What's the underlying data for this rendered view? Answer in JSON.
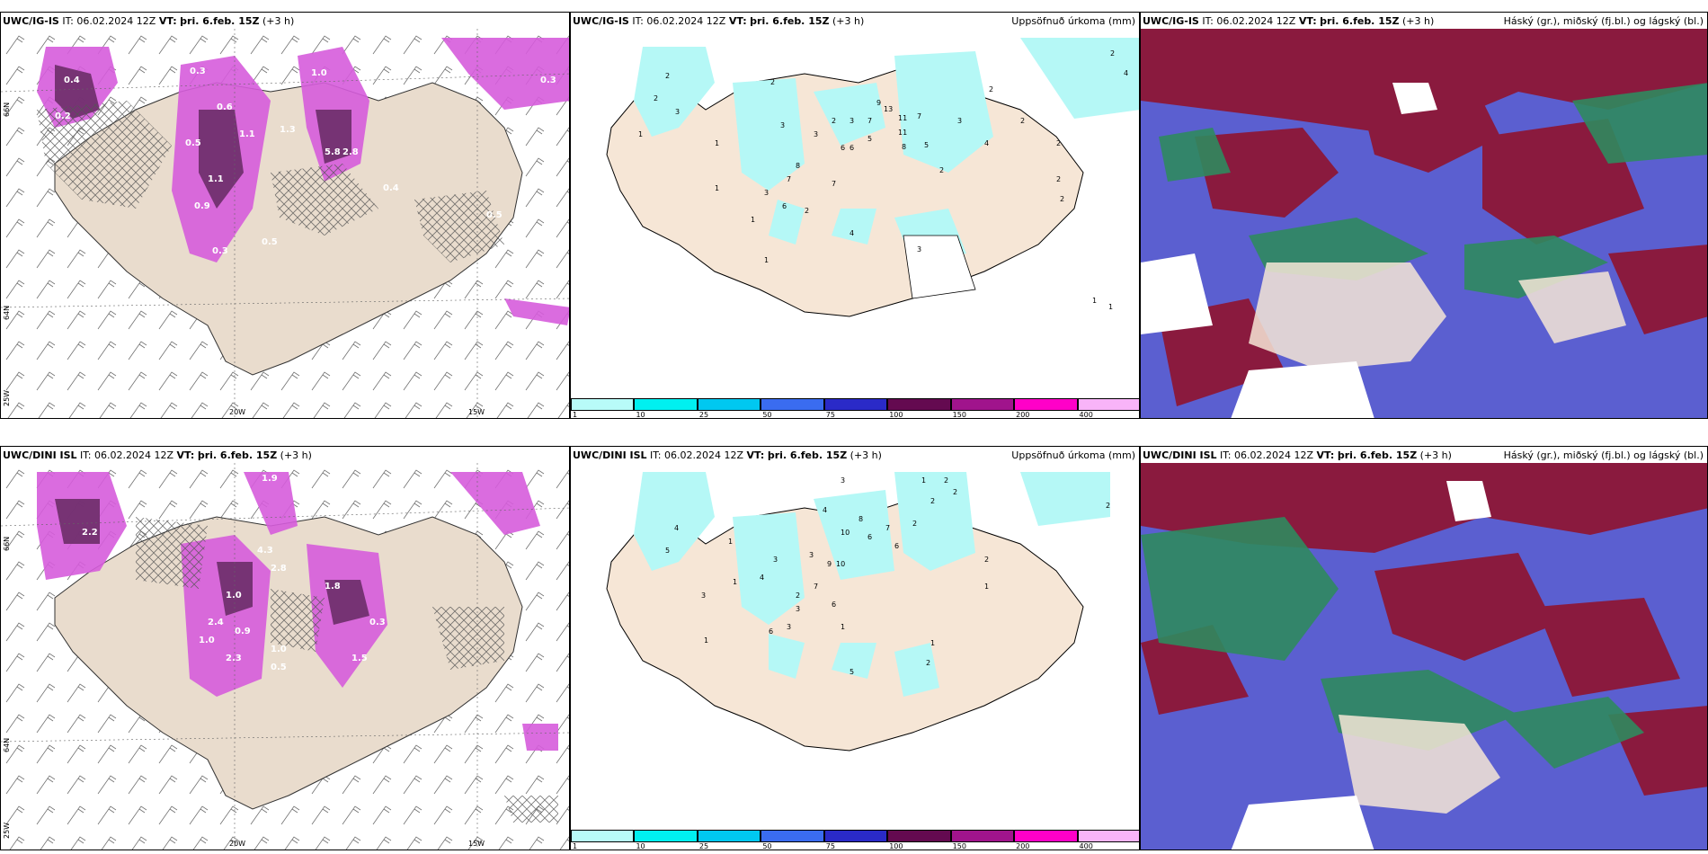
{
  "colors": {
    "land": "#f6e6d6",
    "land_wind": "#e9dccd",
    "precip_light": "#b5f8f6",
    "snow_magenta": "#d65cdb",
    "snow_dark": "#6b2d68",
    "cloud_high": "#8a1a3e",
    "cloud_mid": "#5b5fd0",
    "cloud_low": "#2f8a5e"
  },
  "icons": {
    "hatch": "crosshatch-pattern",
    "barbs": "wind-barb-icon"
  },
  "rows": [
    {
      "model": "UWC/IG-IS",
      "panels": [
        {
          "header_model": "UWC/IG-IS",
          "it": "IT: 06.02.2024 12Z",
          "vt_label": "VT:",
          "vt": "þri. 6.feb. 15Z",
          "lead": "(+3 h)",
          "right_title": ""
        },
        {
          "header_model": "UWC/IG-IS",
          "it": "IT: 06.02.2024 12Z",
          "vt_label": "VT:",
          "vt": "þri. 6.feb. 15Z",
          "lead": "(+3 h)",
          "right_title": "Uppsöfnuð úrkoma (mm)"
        },
        {
          "header_model": "UWC/IG-IS",
          "it": "IT: 06.02.2024 12Z",
          "vt_label": "VT:",
          "vt": "þri. 6.feb. 15Z",
          "lead": "(+3 h)",
          "right_title": "Háský (gr.), miðský (fj.bl.) og lágský (bl.)"
        }
      ]
    },
    {
      "model": "UWC/DINI ISL",
      "panels": [
        {
          "header_model": "UWC/DINI ISL",
          "it": "IT: 06.02.2024 12Z",
          "vt_label": "VT:",
          "vt": "þri. 6.feb. 15Z",
          "lead": "(+3 h)",
          "right_title": ""
        },
        {
          "header_model": "UWC/DINI ISL",
          "it": "IT: 06.02.2024 12Z",
          "vt_label": "VT:",
          "vt": "þri. 6.feb. 15Z",
          "lead": "(+3 h)",
          "right_title": "Uppsöfnuð úrkoma (mm)"
        },
        {
          "header_model": "UWC/DINI ISL",
          "it": "IT: 06.02.2024 12Z",
          "vt_label": "VT:",
          "vt": "þri. 6.feb. 15Z",
          "lead": "(+3 h)",
          "right_title": "Háský (gr.), miðský (fj.bl.) og lágský (bl.)"
        }
      ]
    }
  ],
  "axes": {
    "lon_20": "20W",
    "lon_15": "15W",
    "lat_66": "66N",
    "lat_64": "64N",
    "lon_25": "25W"
  },
  "legend": {
    "labels": [
      "1",
      "10",
      "25",
      "50",
      "75",
      "100",
      "150",
      "200",
      "400"
    ],
    "colors": [
      "#b8fbf8",
      "#00f0f0",
      "#00c8f0",
      "#3a6cf0",
      "#2a2ac8",
      "#640a50",
      "#a0148c",
      "#ff00c8",
      "#f8b4f8"
    ]
  },
  "precip_labels_top": [
    "2",
    "2",
    "3",
    "2",
    "3",
    "1",
    "1",
    "3",
    "2",
    "3",
    "7",
    "9",
    "13",
    "11",
    "7",
    "11",
    "8",
    "5",
    "6",
    "6",
    "5",
    "4",
    "3",
    "2",
    "2",
    "2",
    "2",
    "8",
    "7",
    "7",
    "3",
    "6",
    "2",
    "4",
    "1",
    "1",
    "1",
    "3",
    "2",
    "2",
    "4",
    "2",
    "1",
    "1"
  ],
  "precip_labels_bottom": [
    "3",
    "1",
    "4",
    "2",
    "2",
    "1",
    "4",
    "10",
    "8",
    "6",
    "7",
    "6",
    "9",
    "10",
    "3",
    "2",
    "2",
    "1",
    "4",
    "3",
    "5",
    "2",
    "6",
    "3",
    "3",
    "7",
    "6",
    "1",
    "3",
    "5",
    "2",
    "1",
    "1",
    "2",
    "2",
    "1"
  ],
  "snow_labels_top": [
    "0.4",
    "0.3",
    "0.2",
    "0.5",
    "0.6",
    "1.0",
    "1.1",
    "2.8",
    "5.8",
    "1.3",
    "0.4",
    "1.1",
    "0.3",
    "0.5",
    "0.5",
    "0.9",
    "0.3"
  ],
  "snow_labels_bottom": [
    "0.3",
    "1.9",
    "2.2",
    "4.3",
    "2.8",
    "1.0",
    "2.4",
    "2.3",
    "1.0",
    "0.5",
    "0.9",
    "1.0",
    "1.5",
    "0.3",
    "1.8"
  ]
}
